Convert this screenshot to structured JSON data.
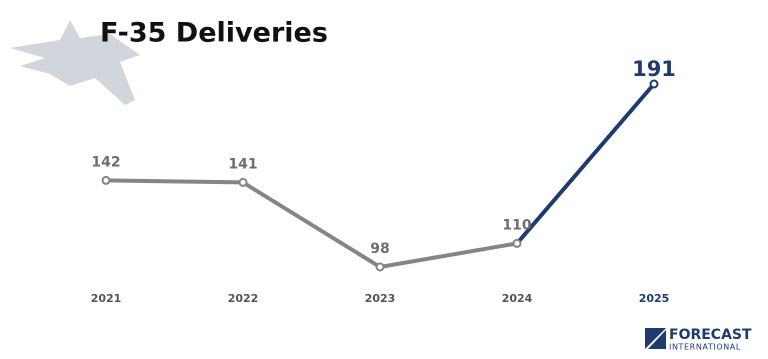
{
  "chart_data": {
    "type": "line",
    "title": "F-35 Deliveries",
    "categories": [
      "2021",
      "2022",
      "2023",
      "2024",
      "2025"
    ],
    "values": [
      142,
      141,
      98,
      110,
      191
    ],
    "color": "#858585",
    "highlight_color": "#1f3a6e"
  },
  "logo": {
    "line1": "FORECAST",
    "line2": "INTERNATIONAL"
  }
}
